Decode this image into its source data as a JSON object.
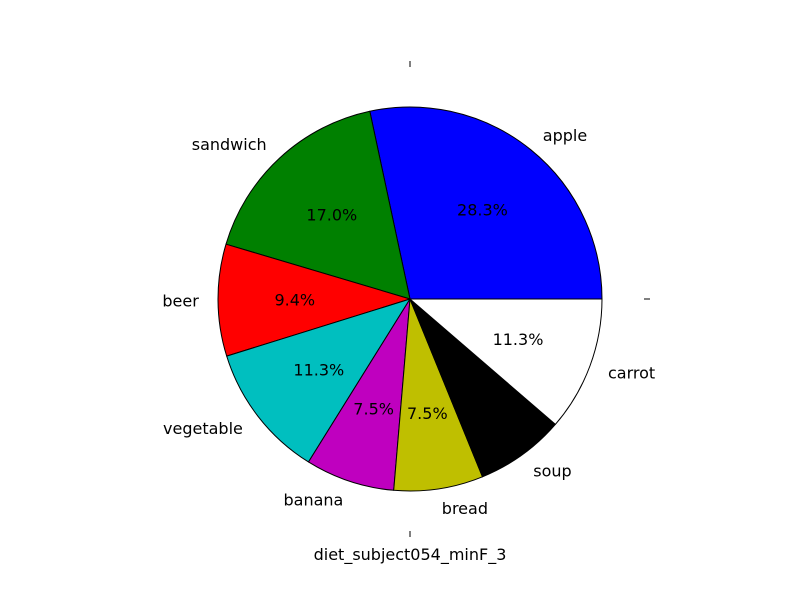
{
  "chart_data": {
    "type": "pie",
    "categories": [
      "apple",
      "sandwich",
      "beer",
      "vegetable",
      "banana",
      "bread",
      "soup",
      "carrot"
    ],
    "values": [
      28.3,
      17.0,
      9.4,
      11.3,
      7.5,
      7.5,
      7.5,
      11.3
    ],
    "value_labels": [
      "28.3%",
      "17.0%",
      "9.4%",
      "11.3%",
      "7.5%",
      "7.5%",
      "",
      "11.3%"
    ],
    "colors": [
      "#0000ff",
      "#008000",
      "#ff0000",
      "#00bfbf",
      "#bf00bf",
      "#bfbf00",
      "#000000",
      "#ffffff"
    ],
    "xlabel": "diet_subject054_minF_3",
    "title": "",
    "start_angle_deg": 0,
    "direction": "counterclockwise"
  }
}
